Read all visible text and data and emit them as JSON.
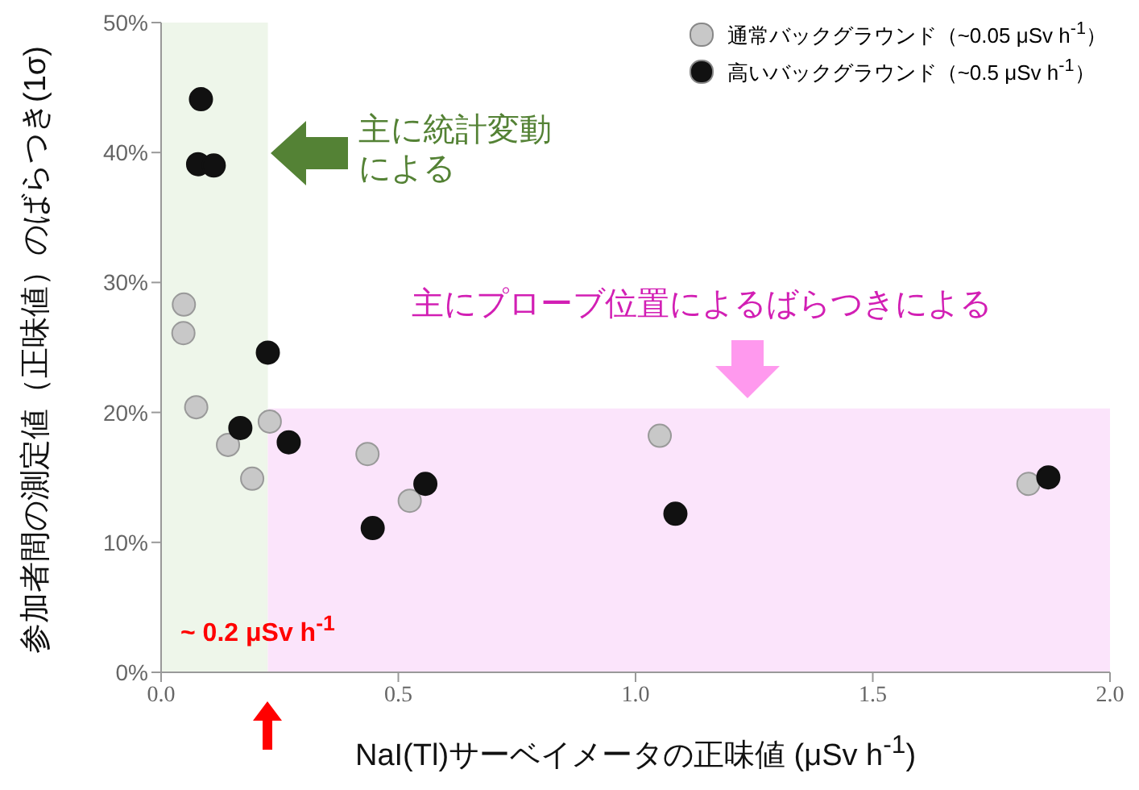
{
  "chart_data": {
    "type": "scatter",
    "xlabel": "NaI(Tl)サーベイメータの正味値 (μSv h$^{-1}$)",
    "ylabel": "参加者間の測定値（正味値）のばらつき(1σ)",
    "xlim": [
      0,
      2
    ],
    "xticks": [
      {
        "value": 0,
        "label": "0.0"
      },
      {
        "value": 0.5,
        "label": "0.5"
      },
      {
        "value": 1,
        "label": "1.0"
      },
      {
        "value": 1.5,
        "label": "1.5"
      },
      {
        "value": 2,
        "label": "2.0"
      }
    ],
    "ylim": [
      0,
      50
    ],
    "yticks": [
      {
        "value": 0,
        "label": "0%"
      },
      {
        "value": 10,
        "label": "10%"
      },
      {
        "value": 20,
        "label": "20%"
      },
      {
        "value": 30,
        "label": "30%"
      },
      {
        "value": 40,
        "label": "40%"
      },
      {
        "value": 50,
        "label": "50%"
      }
    ],
    "grid": false,
    "legend": "top right",
    "marker": "circle",
    "series": [
      {
        "name": "通常バックグラウンド（~0.05 μSv h$^{-1}$）",
        "color": "#c8c8c8",
        "x": [
          0.048,
          0.047,
          0.074,
          0.141,
          0.192,
          0.229,
          0.435,
          0.524,
          1.051,
          1.828
        ],
        "values": [
          28.3,
          26.1,
          20.4,
          17.5,
          14.9,
          19.3,
          16.8,
          13.2,
          18.2,
          14.5
        ]
      },
      {
        "name": "高いバックグラウンド（~0.5 μSv h$^{-1}$）",
        "color": "#111111",
        "x": [
          0.084,
          0.078,
          0.111,
          0.167,
          0.225,
          0.269,
          0.557,
          0.446,
          1.084,
          1.87
        ],
        "values": [
          44.1,
          39.1,
          39.0,
          18.8,
          24.6,
          17.7,
          14.5,
          11.1,
          12.2,
          15.0
        ]
      }
    ],
    "bands": [
      {
        "axis": "x",
        "from": 0,
        "to": 0.225,
        "color": "#eef6ea"
      },
      {
        "axis": "y",
        "from": 0,
        "to": 20.3,
        "label": "主にプローブ位置によるばらつきによる",
        "color": "#fbe4fb"
      }
    ],
    "annotations": [
      "~ 0.2 μSv h$^{-1}$",
      {
        "text": "主に統計変動による",
        "x": 0.225,
        "y": 40
      }
    ]
  }
}
